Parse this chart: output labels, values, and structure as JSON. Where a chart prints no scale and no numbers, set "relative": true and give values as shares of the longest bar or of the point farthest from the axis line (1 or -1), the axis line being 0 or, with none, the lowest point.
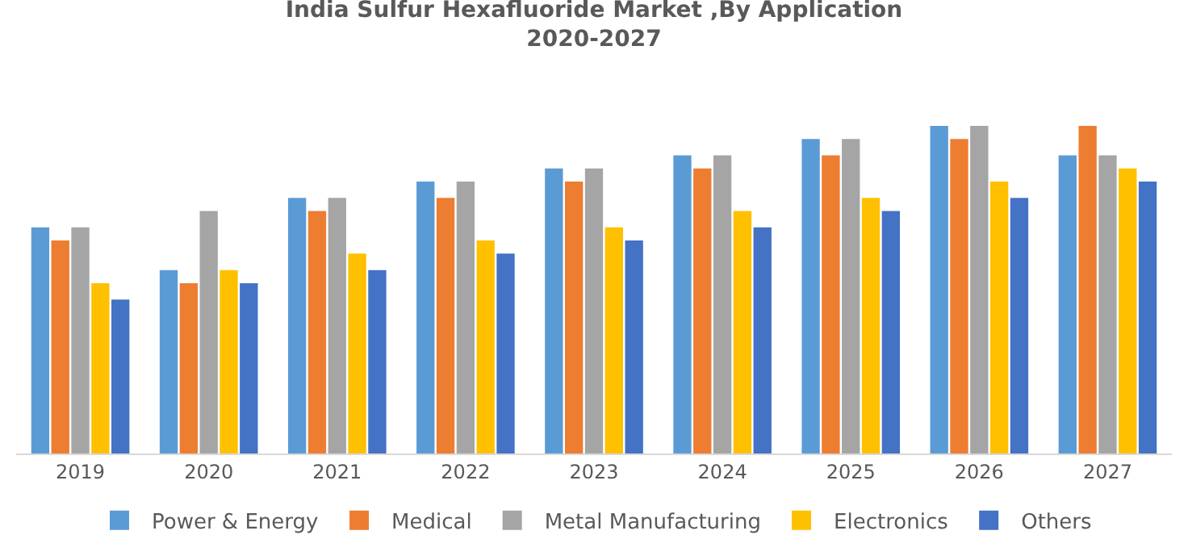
{
  "chart_data": {
    "type": "bar",
    "title": "India Sulfur Hexafluoride Market ,By Application\n2020-2027",
    "relative": true,
    "legend": "bottom",
    "categories": [
      "2019",
      "2020",
      "2021",
      "2022",
      "2023",
      "2024",
      "2025",
      "2026",
      "2027"
    ],
    "series": [
      {
        "name": "Power & Energy",
        "color": "#5b9bd5",
        "values": [
          0.69,
          0.56,
          0.78,
          0.83,
          0.87,
          0.91,
          0.96,
          1.0,
          0.91
        ]
      },
      {
        "name": "Medical",
        "color": "#ed7d31",
        "values": [
          0.65,
          0.52,
          0.74,
          0.78,
          0.83,
          0.87,
          0.91,
          0.96,
          1.0
        ]
      },
      {
        "name": "Metal Manufacturing",
        "color": "#a5a5a5",
        "values": [
          0.69,
          0.74,
          0.78,
          0.83,
          0.87,
          0.91,
          0.96,
          1.0,
          0.91
        ]
      },
      {
        "name": "Electronics",
        "color": "#ffc000",
        "values": [
          0.52,
          0.56,
          0.61,
          0.65,
          0.69,
          0.74,
          0.78,
          0.83,
          0.87
        ]
      },
      {
        "name": "Others",
        "color": "#4472c4",
        "values": [
          0.47,
          0.52,
          0.56,
          0.61,
          0.65,
          0.69,
          0.74,
          0.78,
          0.83
        ]
      }
    ]
  }
}
